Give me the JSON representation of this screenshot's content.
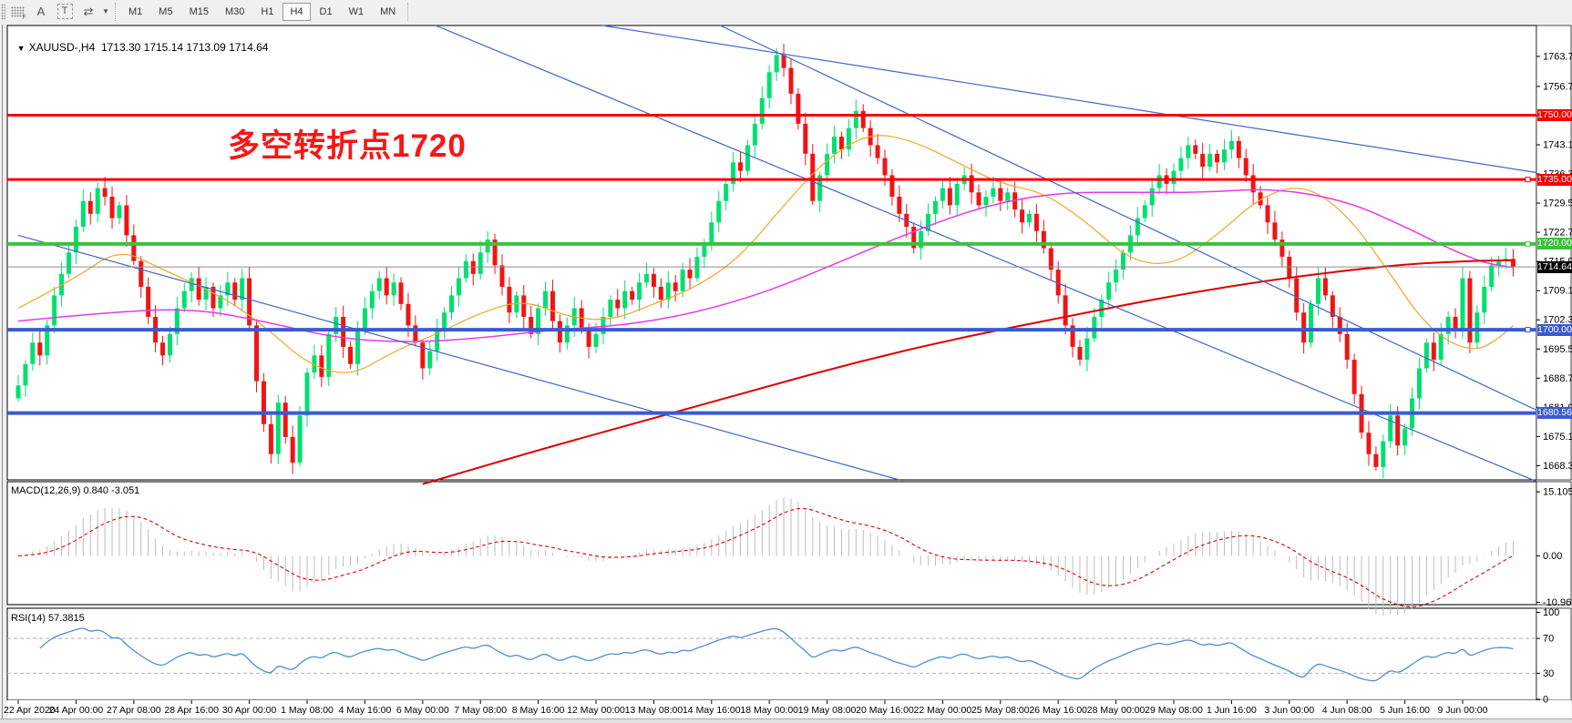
{
  "toolbar": {
    "icons": [
      {
        "name": "grid-fibonacci-icon",
        "glyph": "F"
      },
      {
        "name": "text-a-icon",
        "glyph": "A"
      },
      {
        "name": "text-label-icon",
        "glyph": "T"
      },
      {
        "name": "cursor-arrows-icon",
        "glyph": "⇄"
      },
      {
        "name": "dropdown-caret-icon",
        "glyph": "▾"
      }
    ],
    "timeframes": [
      "M1",
      "M5",
      "M15",
      "M30",
      "H1",
      "H4",
      "D1",
      "W1",
      "MN"
    ],
    "active_timeframe": "H4"
  },
  "chart_header": {
    "caret": "▼",
    "symbol": "XAUUSD-,H4",
    "ohlc": "1713.30 1715.14 1713.09 1714.64"
  },
  "annotation": {
    "text": "多空转折点1720",
    "color": "#fb1414"
  },
  "panels": {
    "macd_label": "MACD(12,26,9) 0.840 -3.051",
    "rsi_label": "RSI(14) 57.3815"
  },
  "price_axis": {
    "ticks": [
      "1763.70",
      "1756.70",
      "1749.90",
      "1743.10",
      "1736.30",
      "1729.50",
      "1722.70",
      "1715.90",
      "1709.10",
      "1702.30",
      "1695.50",
      "1688.70",
      "1681.90",
      "1675.10",
      "1668.30"
    ],
    "badges": [
      {
        "label": "1750.00",
        "price": 1750.0,
        "bg": "#f40000",
        "fg": "#ffffff"
      },
      {
        "label": "1735.00",
        "price": 1735.0,
        "bg": "#f40000",
        "fg": "#ffffff"
      },
      {
        "label": "1720.00",
        "price": 1720.0,
        "bg": "#3cc13c",
        "fg": "#ffffff"
      },
      {
        "label": "1714.64",
        "price": 1714.64,
        "bg": "#000000",
        "fg": "#ffffff"
      },
      {
        "label": "1700.00",
        "price": 1700.0,
        "bg": "#3a5bd0",
        "fg": "#ffffff"
      },
      {
        "label": "1680.56",
        "price": 1680.56,
        "bg": "#3a5bd0",
        "fg": "#ffffff"
      }
    ]
  },
  "macd_axis": [
    {
      "label": "15.105",
      "value": 15.105
    },
    {
      "label": "0.00",
      "value": 0
    },
    {
      "label": "-10.963",
      "value": -10.963
    }
  ],
  "rsi_axis": [
    {
      "label": "100",
      "value": 100
    },
    {
      "label": "70",
      "value": 70
    },
    {
      "label": "30",
      "value": 30
    },
    {
      "label": "0",
      "value": 0
    }
  ],
  "time_axis": [
    "22 Apr 2020",
    "24 Apr 00:00",
    "27 Apr 08:00",
    "28 Apr 16:00",
    "30 Apr 00:00",
    "1 May 08:00",
    "4 May 16:00",
    "6 May 00:00",
    "7 May 08:00",
    "8 May 16:00",
    "12 May 00:00",
    "13 May 08:00",
    "14 May 16:00",
    "18 May 00:00",
    "19 May 08:00",
    "20 May 16:00",
    "22 May 00:00",
    "25 May 08:00",
    "26 May 16:00",
    "28 May 00:00",
    "29 May 08:00",
    "1 Jun 16:00",
    "3 Jun 00:00",
    "4 Jun 08:00",
    "5 Jun 16:00",
    "9 Jun 00:00"
  ],
  "chart_data": {
    "type": "candlestick",
    "symbol": "XAUUSD",
    "timeframe": "H4",
    "price_range": [
      1665.0,
      1770.9
    ],
    "open_first": 1684,
    "closes": [
      1687,
      1692,
      1697,
      1694,
      1701,
      1708,
      1713,
      1718,
      1724,
      1730,
      1727,
      1733,
      1731,
      1726,
      1729,
      1722,
      1716,
      1710,
      1703,
      1697,
      1694,
      1699,
      1705,
      1709,
      1712,
      1707,
      1710,
      1705,
      1708,
      1711,
      1707,
      1712,
      1701,
      1688,
      1678,
      1671,
      1683,
      1675,
      1669,
      1680,
      1690,
      1694,
      1689,
      1699,
      1703,
      1696,
      1692,
      1700,
      1705,
      1709,
      1712,
      1708,
      1711,
      1706,
      1701,
      1697,
      1691,
      1695,
      1700,
      1704,
      1708,
      1712,
      1716,
      1713,
      1718,
      1721,
      1715,
      1710,
      1704,
      1708,
      1703,
      1699,
      1705,
      1709,
      1702,
      1697,
      1701,
      1705,
      1700,
      1696,
      1699,
      1703,
      1707,
      1705,
      1709,
      1707,
      1711,
      1713,
      1710,
      1707,
      1711,
      1709,
      1714,
      1712,
      1717,
      1720,
      1725,
      1730,
      1734,
      1739,
      1737,
      1743,
      1748,
      1754,
      1760,
      1764,
      1761,
      1755,
      1748,
      1741,
      1730,
      1736,
      1741,
      1745,
      1742,
      1747,
      1751,
      1747,
      1743,
      1740,
      1736,
      1731,
      1727,
      1724,
      1719,
      1723,
      1727,
      1730,
      1733,
      1729,
      1734,
      1736,
      1732,
      1729,
      1731,
      1733,
      1730,
      1732,
      1728,
      1725,
      1727,
      1723,
      1719,
      1714,
      1708,
      1701,
      1696,
      1693,
      1698,
      1703,
      1707,
      1711,
      1714,
      1718,
      1722,
      1726,
      1729,
      1733,
      1736,
      1734,
      1737,
      1740,
      1743,
      1741,
      1738,
      1741,
      1739,
      1742,
      1744,
      1740,
      1736,
      1732,
      1729,
      1725,
      1721,
      1717,
      1712,
      1704,
      1697,
      1706,
      1712,
      1708,
      1703,
      1699,
      1693,
      1685,
      1676,
      1671,
      1668,
      1674,
      1680,
      1673,
      1677,
      1684,
      1691,
      1697,
      1693,
      1699,
      1703,
      1700,
      1712,
      1697,
      1704,
      1710,
      1715,
      1716,
      1716.5,
      1714.64
    ],
    "candle_colors": {
      "bull": "#00e070",
      "bear": "#f01414"
    },
    "hlines": [
      {
        "price": 1750.0,
        "color": "#f40000",
        "width": 3,
        "handle": false
      },
      {
        "price": 1735.0,
        "color": "#f40000",
        "width": 3,
        "handle": true
      },
      {
        "price": 1720.0,
        "color": "#3cc13c",
        "width": 4,
        "handle": true
      },
      {
        "price": 1700.0,
        "color": "#3a5bd0",
        "width": 4,
        "handle": true
      },
      {
        "price": 1680.56,
        "color": "#3a5bd0",
        "width": 4,
        "handle": false
      }
    ],
    "current_price": {
      "price": 1714.64,
      "color": "#8c8c8c"
    },
    "moving_averages": [
      {
        "name": "ma-fast-orange",
        "color": "#f5a425",
        "width": 1.2,
        "points": [
          [
            0,
            1705
          ],
          [
            8,
            1712
          ],
          [
            14,
            1719
          ],
          [
            20,
            1714
          ],
          [
            28,
            1708
          ],
          [
            34,
            1701
          ],
          [
            40,
            1692
          ],
          [
            46,
            1689
          ],
          [
            52,
            1695
          ],
          [
            58,
            1699
          ],
          [
            64,
            1704
          ],
          [
            70,
            1707
          ],
          [
            76,
            1703
          ],
          [
            82,
            1702
          ],
          [
            88,
            1706
          ],
          [
            94,
            1710
          ],
          [
            100,
            1717
          ],
          [
            106,
            1729
          ],
          [
            112,
            1740
          ],
          [
            118,
            1746
          ],
          [
            124,
            1744
          ],
          [
            130,
            1739
          ],
          [
            136,
            1734
          ],
          [
            142,
            1732
          ],
          [
            148,
            1725
          ],
          [
            154,
            1716
          ],
          [
            160,
            1715
          ],
          [
            166,
            1722
          ],
          [
            172,
            1731
          ],
          [
            178,
            1734
          ],
          [
            184,
            1727
          ],
          [
            190,
            1713
          ],
          [
            194,
            1703
          ],
          [
            198,
            1697
          ],
          [
            202,
            1695
          ],
          [
            205,
            1698
          ],
          [
            207,
            1701
          ]
        ]
      },
      {
        "name": "ma-mid-magenta",
        "color": "#e838e8",
        "width": 1.5,
        "points": [
          [
            0,
            1702
          ],
          [
            12,
            1704
          ],
          [
            24,
            1705
          ],
          [
            34,
            1702
          ],
          [
            44,
            1698
          ],
          [
            54,
            1697
          ],
          [
            64,
            1698
          ],
          [
            74,
            1700
          ],
          [
            84,
            1701
          ],
          [
            94,
            1704
          ],
          [
            104,
            1709
          ],
          [
            114,
            1716
          ],
          [
            124,
            1723
          ],
          [
            134,
            1729
          ],
          [
            144,
            1732
          ],
          [
            154,
            1732
          ],
          [
            164,
            1732
          ],
          [
            174,
            1733
          ],
          [
            184,
            1730
          ],
          [
            192,
            1724
          ],
          [
            198,
            1719
          ],
          [
            203,
            1715.5
          ],
          [
            207,
            1714.5
          ]
        ]
      },
      {
        "name": "ma-slow-red",
        "color": "#e00000",
        "width": 2,
        "points": [
          [
            56,
            1664
          ],
          [
            70,
            1671
          ],
          [
            85,
            1678
          ],
          [
            100,
            1685
          ],
          [
            115,
            1692
          ],
          [
            130,
            1698
          ],
          [
            145,
            1703
          ],
          [
            160,
            1708
          ],
          [
            175,
            1712
          ],
          [
            190,
            1715
          ],
          [
            200,
            1716
          ],
          [
            207,
            1716.2
          ]
        ]
      }
    ],
    "trendlines": [
      {
        "name": "downtrend-line-1",
        "color": "#4066cc",
        "p": [
          [
            57.8,
            1770.9
          ],
          [
            210.3,
            1664.6
          ]
        ]
      },
      {
        "name": "downtrend-line-2",
        "color": "#4066cc",
        "p": [
          [
            97.2,
            1770.9
          ],
          [
            210.3,
            1681.2
          ]
        ]
      },
      {
        "name": "downtrend-line-3",
        "color": "#4066cc",
        "p": [
          [
            80.9,
            1770.9
          ],
          [
            210.3,
            1736.6
          ]
        ]
      },
      {
        "name": "downtrend-line-4",
        "color": "#4066cc",
        "p": [
          [
            0,
            1722
          ],
          [
            122,
            1665
          ]
        ]
      }
    ],
    "macd": {
      "params": "12,26,9",
      "main": 0.84,
      "signal": -3.051,
      "range": [
        -11.5,
        17.5
      ],
      "hist_color": "#bdbdbd",
      "signal_color": "#e00000"
    },
    "rsi": {
      "period": 14,
      "value": 57.3815,
      "levels": [
        70,
        30
      ],
      "color": "#4a8fd4",
      "range": [
        0,
        100
      ]
    }
  }
}
